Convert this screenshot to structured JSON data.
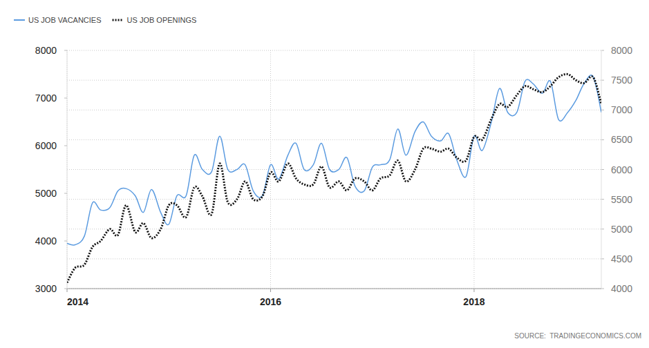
{
  "chart_data": {
    "type": "line",
    "x": [
      2014,
      2014.08,
      2014.17,
      2014.25,
      2014.33,
      2014.42,
      2014.5,
      2014.58,
      2014.67,
      2014.75,
      2014.83,
      2014.92,
      2015,
      2015.08,
      2015.17,
      2015.25,
      2015.33,
      2015.42,
      2015.5,
      2015.58,
      2015.67,
      2015.75,
      2015.83,
      2015.92,
      2016,
      2016.08,
      2016.17,
      2016.25,
      2016.33,
      2016.42,
      2016.5,
      2016.58,
      2016.67,
      2016.75,
      2016.83,
      2016.92,
      2017,
      2017.08,
      2017.17,
      2017.25,
      2017.33,
      2017.42,
      2017.5,
      2017.58,
      2017.67,
      2017.75,
      2017.83,
      2017.92,
      2018,
      2018.08,
      2018.17,
      2018.25,
      2018.33,
      2018.42,
      2018.5,
      2018.58,
      2018.67,
      2018.75,
      2018.83,
      2018.92,
      2019,
      2019.08,
      2019.17,
      2019.25
    ],
    "xlim": [
      2014,
      2019.25
    ],
    "xticks": [
      2014,
      2016,
      2018
    ],
    "ylim": [
      3000,
      8000
    ],
    "yticks": [
      3000,
      4000,
      5000,
      6000,
      7000,
      8000
    ],
    "y2lim": [
      4000,
      8000
    ],
    "y2ticks": [
      4000,
      4500,
      5000,
      5500,
      6000,
      6500,
      7000,
      7500,
      8000
    ],
    "grid": true,
    "legend": "top-left",
    "annotations": [
      "SOURCE:  TRADINGECONOMICS.COM"
    ],
    "series": [
      {
        "name": "US JOB VACANCIES",
        "color": "#5b9be0",
        "line_style": "solid",
        "values": [
          3950,
          3920,
          4100,
          4800,
          4650,
          4700,
          5050,
          5100,
          4950,
          4600,
          5080,
          4600,
          4350,
          4950,
          4950,
          5800,
          5500,
          5450,
          6200,
          5500,
          5500,
          5600,
          5050,
          4950,
          5600,
          5300,
          5800,
          6050,
          5500,
          5600,
          6050,
          5500,
          5500,
          5750,
          5150,
          5050,
          5550,
          5600,
          5700,
          6350,
          5800,
          6300,
          6500,
          6200,
          6100,
          6250,
          5700,
          5350,
          6200,
          5900,
          6500,
          7200,
          6700,
          6700,
          7350,
          7300,
          7100,
          7350,
          6550,
          6700,
          6950,
          7300,
          7450,
          6700
        ]
      },
      {
        "name": "US JOB OPENINGS",
        "color": "#111111",
        "line_style": "dotted",
        "axis": "y2",
        "values": [
          4100,
          4350,
          4400,
          4700,
          4800,
          5000,
          4900,
          5400,
          4950,
          5100,
          4850,
          5000,
          5400,
          5400,
          5200,
          5700,
          5550,
          5250,
          6100,
          5450,
          5500,
          5800,
          5500,
          5550,
          5950,
          5800,
          6100,
          5850,
          5750,
          5750,
          6050,
          5700,
          5800,
          5650,
          5850,
          5800,
          5650,
          5850,
          5900,
          6150,
          5800,
          6000,
          6350,
          6350,
          6300,
          6350,
          6200,
          6150,
          6550,
          6500,
          6850,
          7100,
          7050,
          7250,
          7400,
          7350,
          7300,
          7400,
          7550,
          7600,
          7500,
          7450,
          7550,
          7100
        ]
      }
    ]
  }
}
